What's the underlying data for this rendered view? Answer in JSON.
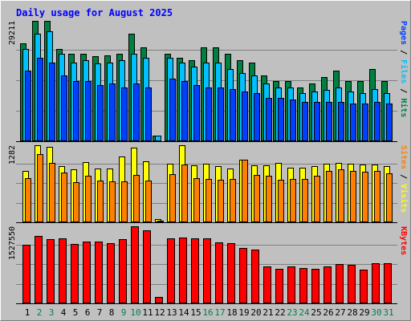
{
  "chart_data": {
    "type": "bar",
    "title": "Daily usage for August 2025",
    "categories": [
      "1",
      "2",
      "3",
      "4",
      "5",
      "6",
      "7",
      "8",
      "9",
      "10",
      "11",
      "12",
      "13",
      "14",
      "15",
      "16",
      "17",
      "18",
      "19",
      "20",
      "21",
      "22",
      "23",
      "24",
      "25",
      "26",
      "27",
      "28",
      "29",
      "30",
      "31"
    ],
    "weekend_days": [
      "2",
      "3",
      "9",
      "10",
      "16",
      "17",
      "23",
      "24",
      "30",
      "31"
    ],
    "panels": [
      {
        "id": "hits",
        "ylabel_parts": [
          "Pages",
          "Files",
          "Hits"
        ],
        "max_label": "29211",
        "ymax": 29211,
        "series": [
          {
            "name": "Hits",
            "color": "#008040",
            "values": [
              23800,
              29211,
              29211,
              22300,
              21300,
              21300,
              20600,
              20900,
              21300,
              26000,
              22800,
              1300,
              21300,
              20300,
              19600,
              22800,
              22800,
              21300,
              19600,
              19100,
              16000,
              14600,
              14600,
              13100,
              14100,
              15600,
              17100,
              14600,
              14600,
              17600,
              14600
            ]
          },
          {
            "name": "Files",
            "color": "#00c0ff",
            "values": [
              22300,
              26000,
              26700,
              21300,
              19100,
              19600,
              18800,
              19100,
              19600,
              21300,
              20300,
              1300,
              20300,
              19100,
              18100,
              19100,
              19100,
              17600,
              16500,
              16000,
              14100,
              13100,
              13100,
              11600,
              12100,
              12500,
              13100,
              12100,
              11600,
              12600,
              11600
            ]
          },
          {
            "name": "Pages",
            "color": "#0040ff",
            "values": [
              17100,
              20300,
              19100,
              16000,
              14600,
              14600,
              13600,
              14100,
              13100,
              14100,
              13100,
              0,
              15100,
              14600,
              13600,
              13100,
              13100,
              12600,
              12100,
              11600,
              10600,
              10600,
              10100,
              9600,
              9600,
              9600,
              9600,
              9100,
              9100,
              9600,
              9100
            ]
          }
        ]
      },
      {
        "id": "visits",
        "ylabel_parts": [
          "Sites",
          "Visits"
        ],
        "max_label": "1282",
        "ymax": 1282,
        "series": [
          {
            "name": "Visits",
            "color": "#ffff00",
            "values": [
              855,
              1282,
              1254,
              938,
              887,
              1001,
              901,
              901,
              1100,
              1247,
              1014,
              59,
              969,
              1282,
              942,
              976,
              935,
              894,
              1038,
              942,
              942,
              990,
              907,
              907,
              932,
              976,
              983,
              969,
              962,
              962,
              938
            ]
          },
          {
            "name": "Sites",
            "color": "#ff8000",
            "values": [
              728,
              1141,
              990,
              824,
              673,
              770,
              701,
              681,
              681,
              783,
              701,
              31,
              804,
              962,
              728,
              715,
              707,
              715,
              1041,
              790,
              770,
              707,
              715,
              715,
              770,
              852,
              880,
              859,
              845,
              859,
              818
            ]
          }
        ]
      },
      {
        "id": "kbytes",
        "ylabel_parts": [
          "KBytes"
        ],
        "max_label": "1527550",
        "ymax": 1527550,
        "series": [
          {
            "name": "KBytes",
            "color": "#ff0000",
            "values": [
              1154000,
              1329000,
              1272000,
              1284000,
              1172000,
              1227000,
              1224000,
              1190000,
              1266000,
              1527550,
              1448000,
              120000,
              1295000,
              1303000,
              1295000,
              1284000,
              1212000,
              1190000,
              1104000,
              1063000,
              733000,
              687000,
              733000,
              699000,
              687000,
              724000,
              778000,
              765000,
              676000,
              801000,
              796000
            ]
          }
        ]
      }
    ]
  },
  "colors": {
    "background": "#c0c0c0",
    "panel_bg": "#ffffff",
    "title": "#0000ff",
    "separator": "#000000",
    "weekday_label": "#000000",
    "weekend_label": "#00804a",
    "label_sep": "#000000"
  }
}
